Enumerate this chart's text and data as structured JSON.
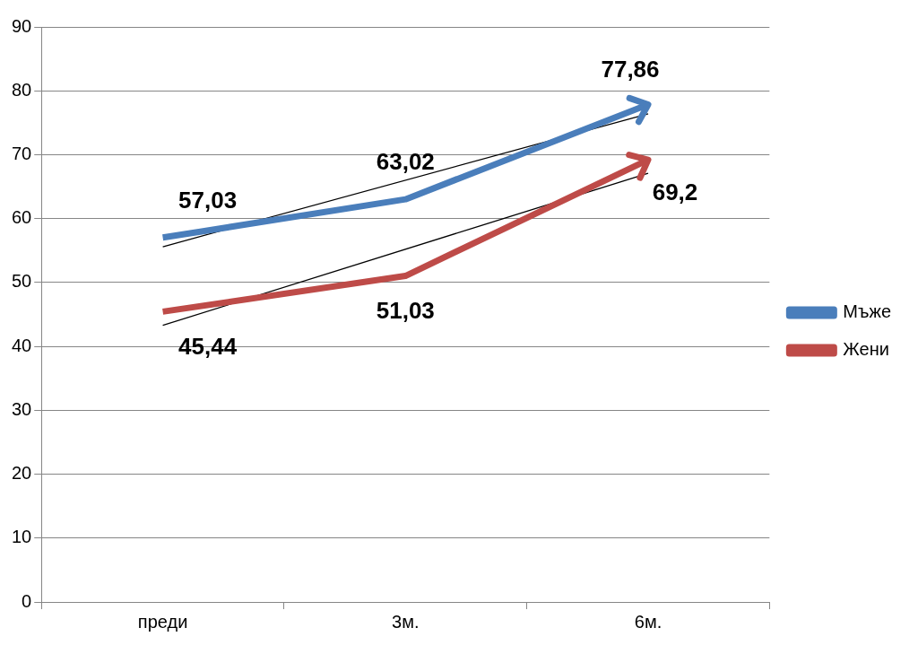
{
  "chart_data": {
    "type": "line",
    "categories": [
      "преди",
      "3м.",
      "6м."
    ],
    "series": [
      {
        "name": "Мъже",
        "color": "#4a7ebb",
        "values": [
          57.03,
          63.02,
          77.86
        ],
        "value_labels": [
          "57,03",
          "63,02",
          "77,86"
        ]
      },
      {
        "name": "Жени",
        "color": "#be4b48",
        "values": [
          45.44,
          51.03,
          69.2
        ],
        "value_labels": [
          "45,44",
          "51,03",
          "69,2"
        ]
      },
      {
        "type": "line",
        "color": "#000000",
        "x": [
          "преди",
          "6м."
        ],
        "values": [
          55.6,
          76.4
        ]
      },
      {
        "type": "line",
        "color": "#000000",
        "x": [
          "преди",
          "6м."
        ],
        "values": [
          43.3,
          67.1
        ]
      }
    ],
    "ylim": [
      0,
      90
    ],
    "yticks": [
      0,
      10,
      20,
      30,
      40,
      50,
      60,
      70,
      80,
      90
    ],
    "grid": "y",
    "legend": "right",
    "marker": "none",
    "line_style": "solid"
  }
}
